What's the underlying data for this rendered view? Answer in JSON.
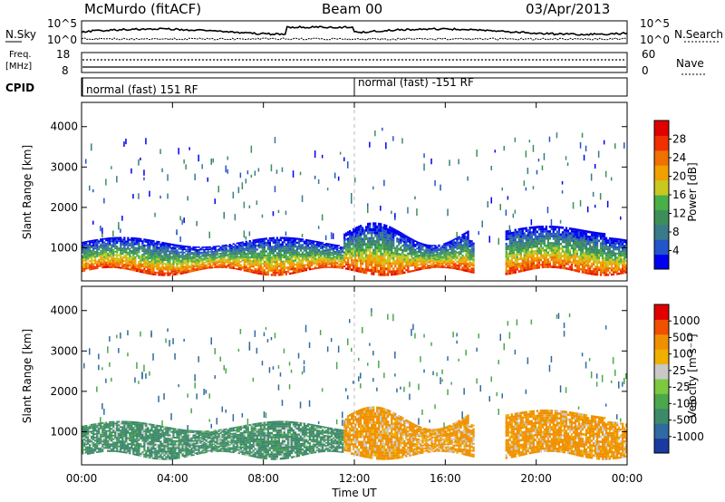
{
  "header": {
    "station": "McMurdo (fitACF)",
    "beam": "Beam 00",
    "date": "03/Apr/2013"
  },
  "noise_panel": {
    "left_label": "N.Sky",
    "right_label": "N.Search",
    "left_ticks": [
      "10^5",
      "10^0"
    ],
    "right_ticks": [
      "10^5",
      "10^0"
    ]
  },
  "freq_panel": {
    "left_label_top": "Freq.",
    "left_label_bottom": "[MHz]",
    "right_label": "Nave",
    "left_ticks": [
      "18",
      "8"
    ],
    "right_ticks": [
      "60",
      "0"
    ]
  },
  "cpid_panel": {
    "label": "CPID",
    "segments": [
      {
        "start_hour": 0,
        "text": "normal (fast) 151 RF"
      },
      {
        "start_hour": 12,
        "text": "normal (fast) -151 RF"
      }
    ]
  },
  "time_axis": {
    "label": "Time UT",
    "ticks": [
      "00:00",
      "04:00",
      "08:00",
      "12:00",
      "16:00",
      "20:00",
      "00:00"
    ]
  },
  "chart_data": [
    {
      "type": "heatmap",
      "name": "power",
      "ylabel": "Slant Range [km]",
      "ylim": [
        180,
        4600
      ],
      "xlim_hours": [
        0,
        24
      ],
      "yticks": [
        "1000",
        "2000",
        "3000",
        "4000"
      ],
      "colorbar": {
        "label": "Power [dB]",
        "ticks": [
          "28",
          "24",
          "20",
          "16",
          "12",
          "8",
          "4"
        ],
        "colors": [
          "#0000f0",
          "#2255c8",
          "#3a7a8a",
          "#3d8f5a",
          "#48b048",
          "#c8c820",
          "#f0a000",
          "#f07000",
          "#f03000",
          "#e00000"
        ]
      }
    },
    {
      "type": "heatmap",
      "name": "velocity",
      "ylabel": "Slant Range [km]",
      "ylim": [
        180,
        4600
      ],
      "xlim_hours": [
        0,
        24
      ],
      "yticks": [
        "1000",
        "2000",
        "3000",
        "4000"
      ],
      "colorbar": {
        "label": "Velocity [m s⁻¹]",
        "ticks": [
          "1000",
          "500",
          "100",
          "25",
          "-25",
          "-100",
          "-500",
          "-1000"
        ],
        "colors": [
          "#1a3aa0",
          "#2f6aa0",
          "#3d8a6a",
          "#4aa84a",
          "#7cc840",
          "#c8c8c8",
          "#f0b000",
          "#f09000",
          "#f05000",
          "#e00000"
        ]
      }
    }
  ]
}
